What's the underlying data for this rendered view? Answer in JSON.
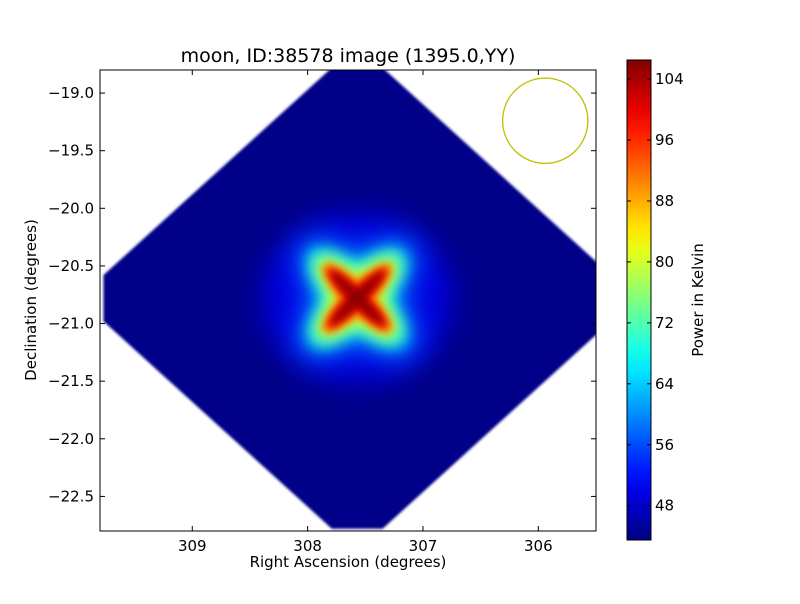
{
  "chart_data": {
    "type": "heatmap",
    "title": "moon, ID:38578 image (1395.0,YY)",
    "xlabel": "Right Ascension (degrees)",
    "ylabel": "Declination (degrees)",
    "xlim": [
      309.8,
      305.5
    ],
    "ylim": [
      -22.8,
      -18.8
    ],
    "x_ticks": [
      309,
      308,
      307,
      306
    ],
    "x_tick_labels": [
      "309",
      "308",
      "307",
      "306"
    ],
    "y_ticks": [
      -19.0,
      -19.5,
      -20.0,
      -20.5,
      -21.0,
      -21.5,
      -22.0,
      -22.5
    ],
    "y_tick_labels": [
      "−19.0",
      "−19.5",
      "−20.0",
      "−20.5",
      "−21.0",
      "−21.5",
      "−22.0",
      "−22.5"
    ],
    "colormap": "jet",
    "colorbar": {
      "label": "Power in Kelvin",
      "min": 43.5,
      "max": 106.5,
      "ticks": [
        48,
        56,
        64,
        72,
        80,
        88,
        96,
        104
      ],
      "tick_labels": [
        "48",
        "56",
        "64",
        "72",
        "80",
        "88",
        "96",
        "104"
      ]
    },
    "image_extent": {
      "center": [
        307.57,
        -20.78
      ],
      "ra_half_width": 2.2,
      "dec_half_height": 2.0
    },
    "source": {
      "center": [
        307.57,
        -20.78
      ],
      "peak_value": 106,
      "background_value": 44,
      "shape": "x-shaped cross",
      "arm_angle_deg": 45
    },
    "beam": {
      "center": [
        305.94,
        -19.24
      ],
      "radius_deg": 0.37,
      "color": "#bfbf00"
    },
    "grid": false
  }
}
